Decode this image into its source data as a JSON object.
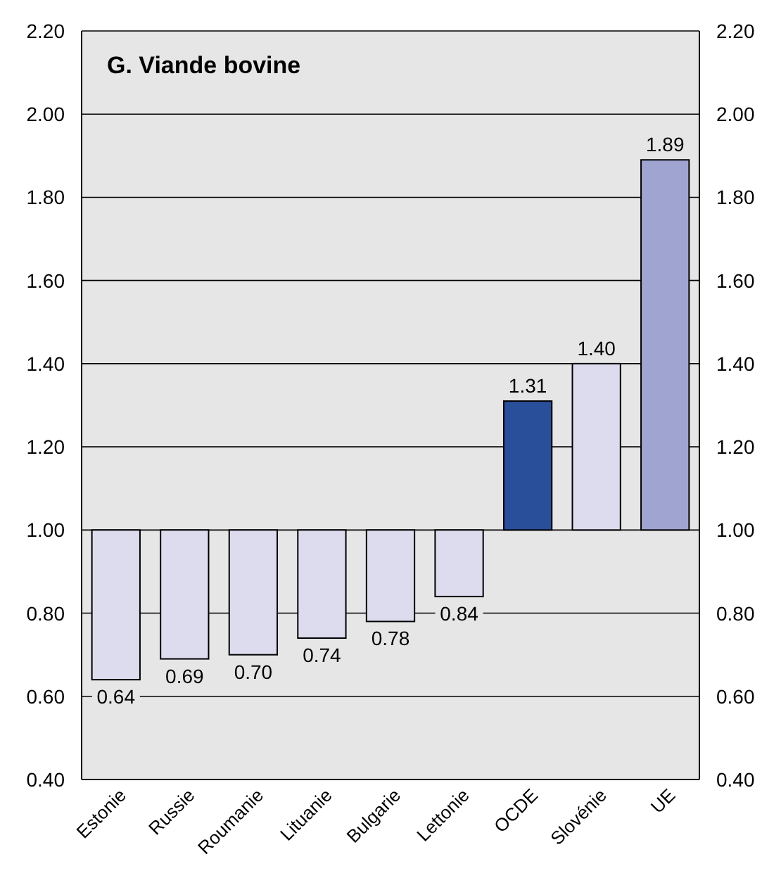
{
  "chart_data": {
    "type": "bar",
    "title": "G. Viande bovine",
    "categories": [
      "Estonie",
      "Russie",
      "Roumanie",
      "Lituanie",
      "Bulgarie",
      "Lettonie",
      "OCDE",
      "Slovénie",
      "UE"
    ],
    "base": [
      1,
      1,
      1,
      1,
      1,
      1,
      1,
      1,
      1
    ],
    "values": [
      -0.36,
      -0.31,
      -0.3,
      -0.26,
      -0.22,
      -0.16,
      0.31,
      0.4,
      0.89
    ],
    "value_labels": [
      "0.64",
      "0.69",
      "0.70",
      "0.74",
      "0.78",
      "0.84",
      "1.31",
      "1.40",
      "1.89"
    ],
    "colors": [
      "#dcdcee",
      "#dcdcee",
      "#dcdcee",
      "#dcdcee",
      "#dcdcee",
      "#dcdcee",
      "#2a4f9a",
      "#dcdcee",
      "#a0a4d0"
    ],
    "ylim": [
      0.4,
      2.2
    ],
    "yticks": [
      {
        "value": 0.4,
        "label": "0.40"
      },
      {
        "value": 0.6,
        "label": "0.60"
      },
      {
        "value": 0.8,
        "label": "0.80"
      },
      {
        "value": 1.0,
        "label": "1.00"
      },
      {
        "value": 1.2,
        "label": "1.20"
      },
      {
        "value": 1.4,
        "label": "1.40"
      },
      {
        "value": 1.6,
        "label": "1.60"
      },
      {
        "value": 1.8,
        "label": "1.80"
      },
      {
        "value": 2.0,
        "label": "2.00"
      },
      {
        "value": 2.2,
        "label": "2.20"
      }
    ],
    "y2lim": [
      0.4,
      2.2
    ],
    "y2ticks": [
      {
        "value": 0.4,
        "label": "0.40"
      },
      {
        "value": 0.6,
        "label": "0.60"
      },
      {
        "value": 0.8,
        "label": "0.80"
      },
      {
        "value": 1.0,
        "label": "1.00"
      },
      {
        "value": 1.2,
        "label": "1.20"
      },
      {
        "value": 1.4,
        "label": "1.40"
      },
      {
        "value": 1.6,
        "label": "1.60"
      },
      {
        "value": 1.8,
        "label": "1.80"
      },
      {
        "value": 2.0,
        "label": "2.00"
      },
      {
        "value": 2.2,
        "label": "2.20"
      }
    ],
    "grid": "y"
  }
}
